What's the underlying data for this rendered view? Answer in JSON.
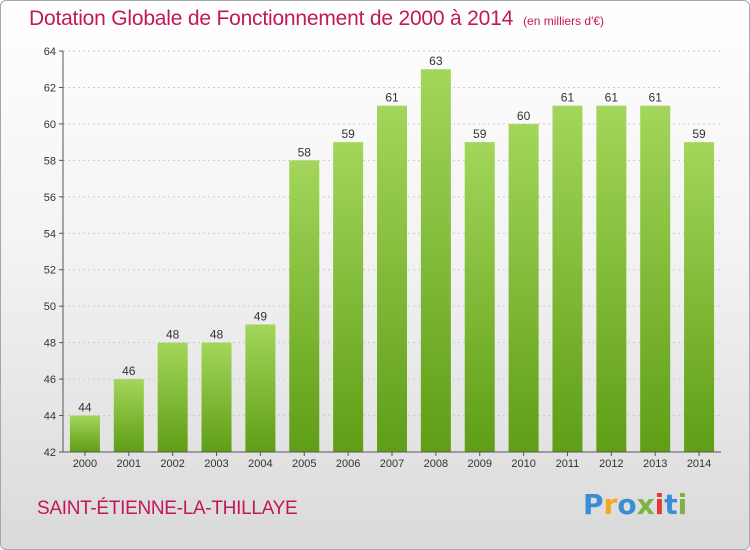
{
  "title": "Dotation Globale de Fonctionnement de 2000 à 2014",
  "subtitle": "(en milliers d'€)",
  "commune": "SAINT-ÉTIENNE-LA-THILLAYE",
  "brand": {
    "letters": [
      "P",
      "r",
      "o",
      "x",
      "i",
      "t",
      "i"
    ],
    "colors": [
      "#3a8ed6",
      "#f5a623",
      "#3a8ed6",
      "#7cb342",
      "#e53935",
      "#3a8ed6",
      "#7cb342"
    ]
  },
  "colors": {
    "title": "#c2185b",
    "bar_light": "#a3d65a",
    "bar_dark": "#5f9e16",
    "grid": "#cccccc",
    "axis": "#555555"
  },
  "chart_data": {
    "type": "bar",
    "categories": [
      "2000",
      "2001",
      "2002",
      "2003",
      "2004",
      "2005",
      "2006",
      "2007",
      "2008",
      "2009",
      "2010",
      "2011",
      "2012",
      "2013",
      "2014"
    ],
    "values": [
      44,
      46,
      48,
      48,
      49,
      58,
      59,
      61,
      63,
      59,
      60,
      61,
      61,
      61,
      59
    ],
    "yticks": [
      42,
      44,
      46,
      48,
      50,
      52,
      54,
      56,
      58,
      60,
      62,
      64
    ],
    "ylim": [
      42,
      64
    ],
    "grid": true,
    "data_labels": true
  }
}
